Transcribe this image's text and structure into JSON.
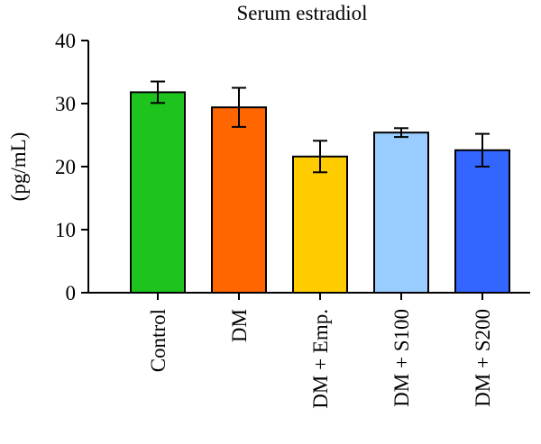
{
  "chart_data": {
    "type": "bar",
    "title": "Serum estradiol",
    "ylabel": "(pg/mL)",
    "xlabel": "",
    "ylim": [
      0,
      40
    ],
    "yticks": [
      0,
      10,
      20,
      30,
      40
    ],
    "grid": false,
    "categories": [
      "Control",
      "DM",
      "DM + Emp.",
      "DM + S100",
      "DM + S200"
    ],
    "values": [
      31.8,
      29.4,
      21.6,
      25.4,
      22.6
    ],
    "errors": [
      1.7,
      3.1,
      2.5,
      0.7,
      2.6
    ],
    "colors": [
      "#1ec31e",
      "#ff6600",
      "#ffcc00",
      "#99ccff",
      "#3366ff"
    ]
  }
}
